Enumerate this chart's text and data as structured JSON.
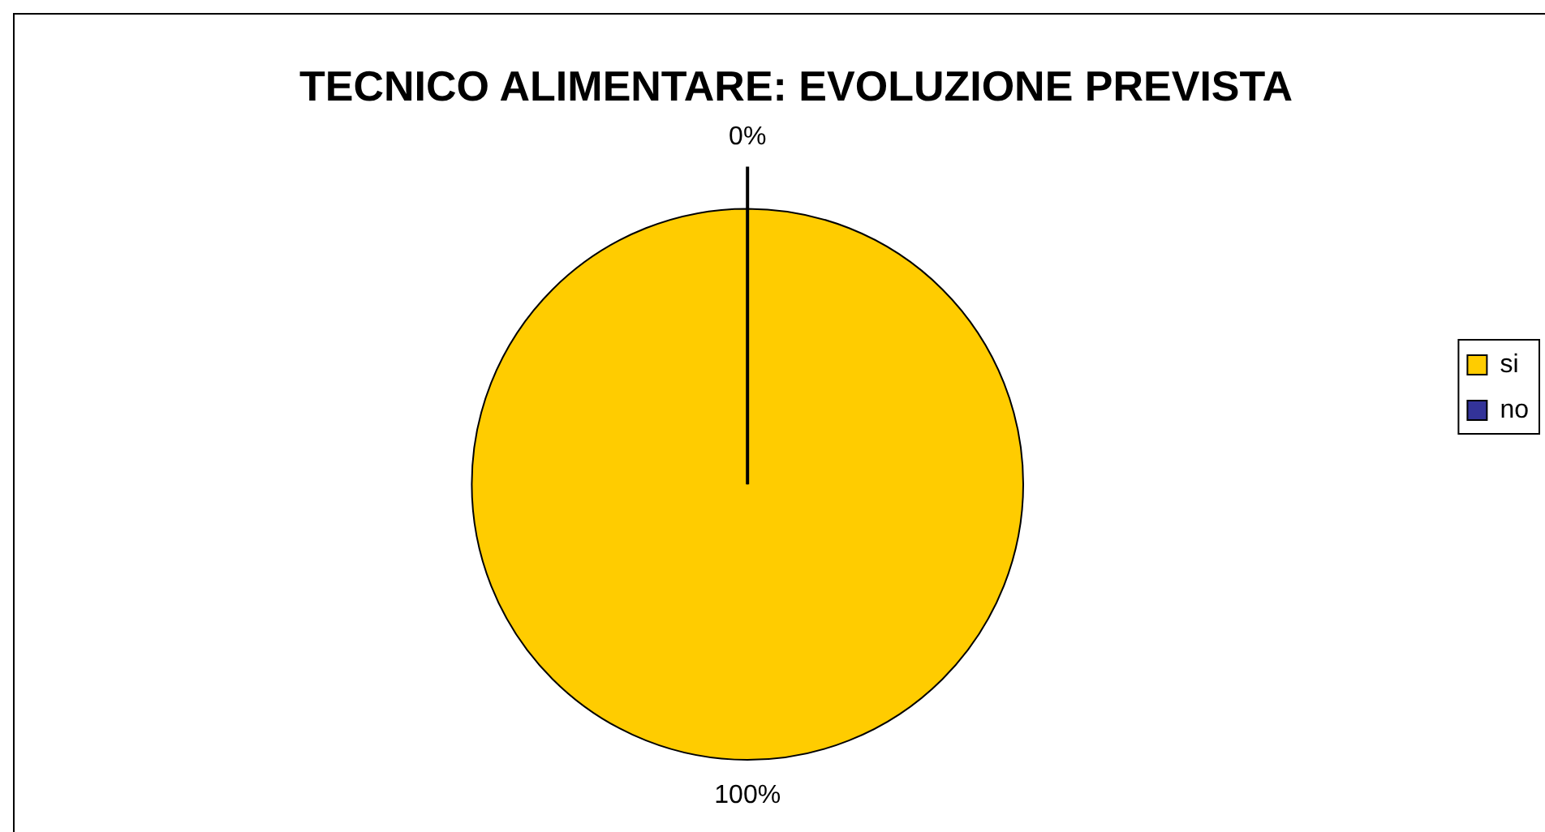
{
  "chart_data": {
    "type": "pie",
    "title": "TECNICO ALIMENTARE: EVOLUZIONE PREVISTA",
    "categories": [
      "si",
      "no"
    ],
    "values": [
      100,
      0
    ],
    "colors": [
      "#ffcc00",
      "#333399"
    ],
    "value_labels": [
      "100%",
      "0%"
    ],
    "legend": "right"
  }
}
